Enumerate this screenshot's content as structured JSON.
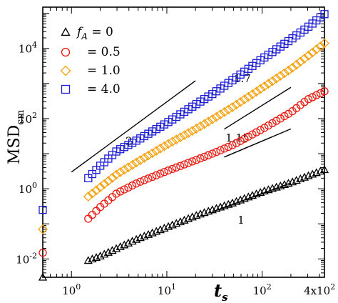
{
  "chart_data": {
    "type": "scatter",
    "x_scale": "log",
    "y_scale": "log",
    "xlim": [
      0.5,
      450
    ],
    "ylim": [
      0.003,
      150000
    ],
    "xlabel": "t_s",
    "ylabel": "MSD_cm",
    "x_ticks": [
      {
        "value": 1,
        "label": "10",
        "exp": "0"
      },
      {
        "value": 10,
        "label": "10",
        "exp": "1"
      },
      {
        "value": 100,
        "label": "10",
        "exp": "2"
      },
      {
        "value": 400,
        "label": "4x10",
        "exp": "2"
      }
    ],
    "y_ticks": [
      {
        "value": 0.01,
        "label": "10",
        "exp": "-2"
      },
      {
        "value": 1,
        "label": "10",
        "exp": "0"
      },
      {
        "value": 100,
        "label": "10",
        "exp": "2"
      },
      {
        "value": 10000,
        "label": "10",
        "exp": "4"
      }
    ],
    "legend": {
      "placement": "top-left",
      "entries": [
        {
          "prefix": "f",
          "sub": "A",
          "text": " = 0"
        },
        {
          "prefix": "",
          "sub": "",
          "text": "= 0.5"
        },
        {
          "prefix": "",
          "sub": "",
          "text": "= 1.0"
        },
        {
          "prefix": "",
          "sub": "",
          "text": "= 4.0"
        }
      ]
    },
    "series": [
      {
        "marker": "triangle",
        "color": "#000000",
        "x0": 0.5,
        "y0": 0.003,
        "x_start": 1.5,
        "x_end": 450,
        "n": 60,
        "anchors": [
          [
            1.5,
            0.009
          ],
          [
            2,
            0.012
          ],
          [
            3,
            0.02
          ],
          [
            5,
            0.038
          ],
          [
            10,
            0.08
          ],
          [
            20,
            0.17
          ],
          [
            30,
            0.25
          ],
          [
            50,
            0.4
          ],
          [
            100,
            0.82
          ],
          [
            200,
            1.5
          ],
          [
            300,
            2.3
          ],
          [
            450,
            3.5
          ]
        ]
      },
      {
        "marker": "circle",
        "color": "#e8180f",
        "x0": 0.5,
        "y0": 0.015,
        "x_start": 1.5,
        "x_end": 450,
        "n": 60,
        "anchors": [
          [
            1.5,
            0.14
          ],
          [
            2,
            0.3
          ],
          [
            3,
            0.75
          ],
          [
            5,
            1.5
          ],
          [
            10,
            3.2
          ],
          [
            20,
            6.5
          ],
          [
            30,
            10
          ],
          [
            50,
            18
          ],
          [
            100,
            50
          ],
          [
            200,
            150
          ],
          [
            300,
            350
          ],
          [
            450,
            600
          ]
        ]
      },
      {
        "marker": "diamond",
        "color": "#f5a00a",
        "x0": 0.5,
        "y0": 0.07,
        "x_start": 1.5,
        "x_end": 450,
        "n": 60,
        "anchors": [
          [
            1.5,
            0.6
          ],
          [
            2,
            1.1
          ],
          [
            3,
            2.6
          ],
          [
            5,
            6
          ],
          [
            10,
            18
          ],
          [
            20,
            50
          ],
          [
            30,
            95
          ],
          [
            50,
            220
          ],
          [
            100,
            750
          ],
          [
            200,
            2600
          ],
          [
            300,
            6000
          ],
          [
            450,
            14000
          ]
        ]
      },
      {
        "marker": "square",
        "color": "#1c1cd6",
        "x0": 0.5,
        "y0": 0.25,
        "x_start": 1.5,
        "x_end": 450,
        "n": 60,
        "anchors": [
          [
            1.5,
            2
          ],
          [
            2,
            4.5
          ],
          [
            3,
            12
          ],
          [
            5,
            25
          ],
          [
            10,
            75
          ],
          [
            20,
            250
          ],
          [
            30,
            500
          ],
          [
            50,
            1300
          ],
          [
            100,
            5000
          ],
          [
            200,
            18000
          ],
          [
            300,
            40000
          ],
          [
            450,
            95000
          ]
        ]
      }
    ],
    "annotations": [
      {
        "label": "2",
        "slope": 2,
        "line": [
          [
            1,
            3
          ],
          [
            20,
            1200
          ]
        ],
        "label_at": [
          4,
          18
        ]
      },
      {
        "label": "1.7",
        "slope": 1.7,
        "line": [
          [
            40,
            50
          ],
          [
            200,
            775
          ]
        ],
        "label_at": [
          62,
          1100
        ]
      },
      {
        "label": "1.15",
        "slope": 1.15,
        "line": [
          [
            40,
            8
          ],
          [
            200,
            50.8
          ]
        ],
        "label_at": [
          55,
          22
        ]
      },
      {
        "label": "1",
        "slope": 1,
        "line": [
          [
            30,
            0.22
          ],
          [
            200,
            1.47
          ]
        ],
        "label_at": [
          60,
          0.1
        ]
      }
    ]
  }
}
